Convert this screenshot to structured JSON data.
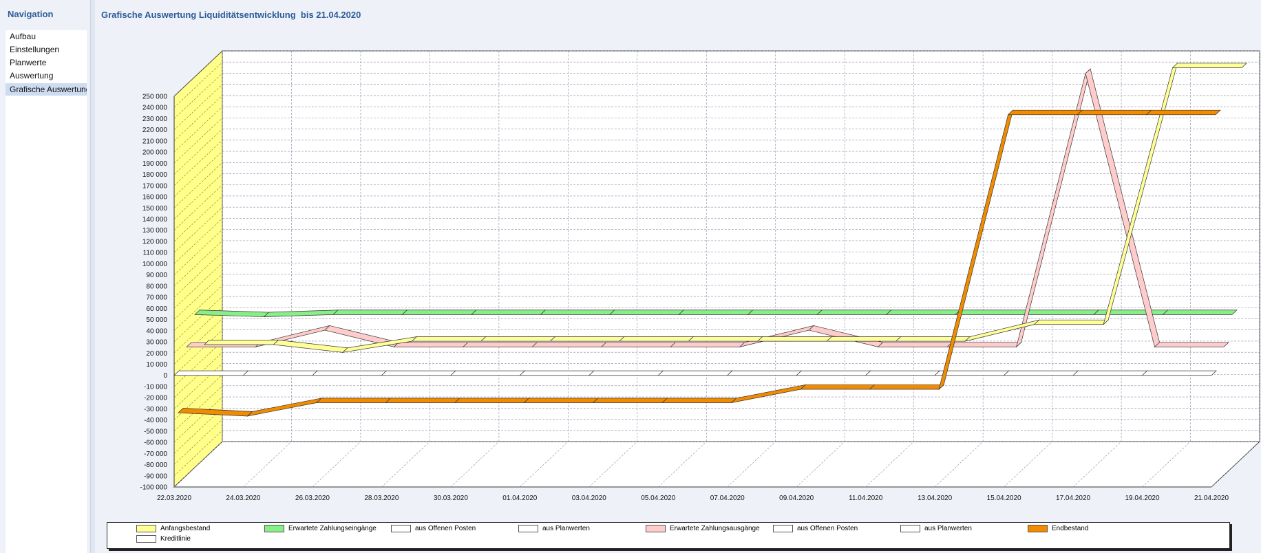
{
  "navigation": {
    "title": "Navigation",
    "items": [
      {
        "label": "Aufbau"
      },
      {
        "label": "Einstellungen"
      },
      {
        "label": "Planwerte"
      },
      {
        "label": "Auswertung"
      },
      {
        "label": "Grafische Auswertung",
        "selected": true
      }
    ]
  },
  "page": {
    "title": "Grafische Auswertung Liquiditätsentwicklung  bis 21.04.2020"
  },
  "colors": {
    "wall": "#ffff8a",
    "grid": "#8a8aa8",
    "anfangsbestand": "#ffff99",
    "eingaenge": "#88ee88",
    "ausgaenge": "#ffcccc",
    "endbestand": "#f28b00",
    "white": "#ffffff",
    "olive": "#c2c26a",
    "mauve": "#c9a2a2"
  },
  "chart_data": {
    "type": "line",
    "style": "3d",
    "categories": [
      "22.03.2020",
      "24.03.2020",
      "26.03.2020",
      "28.03.2020",
      "30.03.2020",
      "01.04.2020",
      "03.04.2020",
      "05.04.2020",
      "07.04.2020",
      "09.04.2020",
      "11.04.2020",
      "13.04.2020",
      "15.04.2020",
      "17.04.2020",
      "19.04.2020",
      "21.04.2020"
    ],
    "y_tick_labels": [
      "250 000",
      "240 000",
      "230 000",
      "220 000",
      "210 000",
      "200 000",
      "190 000",
      "180 000",
      "170 000",
      "160 000",
      "150 000",
      "140 000",
      "130 000",
      "120 000",
      "110 000",
      "100 000",
      "90 000",
      "80 000",
      "70 000",
      "60 000",
      "50 000",
      "40 000",
      "30 000",
      "20 000",
      "10 000",
      "0",
      "-10 000",
      "-20 000",
      "-30 000",
      "-40 000",
      "-50 000",
      "-60 000",
      "-70 000",
      "-80 000",
      "-90 000",
      "-100 000"
    ],
    "ylim": [
      -100000,
      250000
    ],
    "grid": true,
    "legend_position": "bottom",
    "legend": [
      "Anfangsbestand",
      "Erwartete Zahlungseingänge",
      "aus Offenen Posten",
      "aus Planwerten",
      "Erwartete Zahlungsausgänge",
      "aus Offenen Posten",
      "aus Planwerten",
      "Endbestand",
      "Kreditlinie"
    ],
    "series": [
      {
        "name": "Anfangsbestand",
        "values": [
          2000,
          2000,
          -5000,
          5000,
          5000,
          5000,
          5000,
          5000,
          5000,
          5000,
          5000,
          5000,
          20000,
          20000,
          250000,
          250000
        ]
      },
      {
        "name": "Erwartete Zahlungseingänge",
        "values": [
          37000,
          35000,
          37000,
          37000,
          37000,
          37000,
          37000,
          37000,
          37000,
          37000,
          37000,
          37000,
          37000,
          37000,
          37000,
          37000
        ]
      },
      {
        "name": "Erwartete Zahlungsausgänge",
        "values": [
          15000,
          15000,
          30000,
          15000,
          15000,
          15000,
          15000,
          15000,
          15000,
          30000,
          15000,
          15000,
          15000,
          260000,
          15000,
          15000
        ]
      },
      {
        "name": "Endbestand",
        "values": [
          -37000,
          -40000,
          -28000,
          -28000,
          -28000,
          -28000,
          -28000,
          -28000,
          -28000,
          -16000,
          -16000,
          -16000,
          230000,
          230000,
          230000,
          230000
        ]
      },
      {
        "name": "Kreditlinie",
        "values": [
          0,
          0,
          0,
          0,
          0,
          0,
          0,
          0,
          0,
          0,
          0,
          0,
          0,
          0,
          0,
          0
        ]
      }
    ]
  }
}
